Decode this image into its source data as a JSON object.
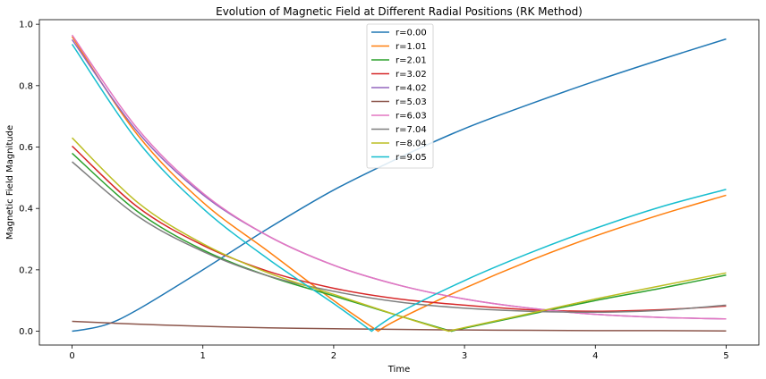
{
  "chart_data": {
    "type": "line",
    "title": "Evolution of Magnetic Field at Different Radial Positions (RK Method)",
    "xlabel": "Time",
    "ylabel": "Magnetic Field Magnitude",
    "xlim": [
      -0.25,
      5.25
    ],
    "ylim": [
      -0.045,
      1.015
    ],
    "xticks": [
      0,
      1,
      2,
      3,
      4,
      5
    ],
    "xtick_labels": [
      "0",
      "1",
      "2",
      "3",
      "4",
      "5"
    ],
    "yticks": [
      0.0,
      0.2,
      0.4,
      0.6,
      0.8,
      1.0
    ],
    "ytick_labels": [
      "0.0",
      "0.2",
      "0.4",
      "0.6",
      "0.8",
      "1.0"
    ],
    "grid": false,
    "legend_position": "top-center",
    "series": [
      {
        "name": "r=0.00",
        "color": "#1f77b4",
        "x": [
          0,
          0.25,
          0.5,
          1.0,
          1.5,
          2.0,
          2.5,
          3.0,
          3.5,
          4.0,
          4.5,
          5.0
        ],
        "y": [
          0.0,
          0.02,
          0.07,
          0.2,
          0.335,
          0.46,
          0.565,
          0.66,
          0.74,
          0.815,
          0.885,
          0.952
        ]
      },
      {
        "name": "r=1.01",
        "color": "#ff7f0e",
        "x": [
          0,
          0.5,
          1.0,
          1.5,
          2.0,
          2.34,
          2.5,
          3.0,
          3.5,
          4.0,
          4.5,
          5.0
        ],
        "y": [
          0.96,
          0.64,
          0.42,
          0.26,
          0.1,
          0.0,
          0.04,
          0.14,
          0.23,
          0.31,
          0.38,
          0.443
        ]
      },
      {
        "name": "r=2.01",
        "color": "#2ca02c",
        "x": [
          0,
          0.5,
          1.0,
          1.5,
          2.0,
          2.5,
          2.9,
          3.0,
          3.5,
          4.0,
          4.5,
          5.0
        ],
        "y": [
          0.58,
          0.39,
          0.265,
          0.18,
          0.115,
          0.05,
          0.0,
          0.01,
          0.055,
          0.1,
          0.14,
          0.183
        ]
      },
      {
        "name": "r=3.02",
        "color": "#d62728",
        "x": [
          0,
          0.5,
          1.0,
          1.5,
          2.0,
          2.5,
          3.0,
          3.5,
          4.0,
          4.5,
          5.0
        ],
        "y": [
          0.603,
          0.405,
          0.28,
          0.195,
          0.14,
          0.105,
          0.085,
          0.07,
          0.065,
          0.07,
          0.082
        ]
      },
      {
        "name": "r=4.02",
        "color": "#9467bd",
        "x": [
          0,
          0.5,
          1.0,
          1.5,
          2.0,
          2.5,
          3.0,
          3.5,
          4.0,
          4.5,
          5.0
        ],
        "y": [
          0.95,
          0.65,
          0.445,
          0.31,
          0.215,
          0.15,
          0.105,
          0.075,
          0.055,
          0.045,
          0.04
        ]
      },
      {
        "name": "r=5.03",
        "color": "#8c564b",
        "x": [
          0,
          0.5,
          1.0,
          1.5,
          2.0,
          2.5,
          3.0,
          3.5,
          4.0,
          4.5,
          5.0
        ],
        "y": [
          0.032,
          0.023,
          0.016,
          0.011,
          0.008,
          0.006,
          0.004,
          0.003,
          0.002,
          0.002,
          0.001
        ]
      },
      {
        "name": "r=6.03",
        "color": "#e377c2",
        "x": [
          0,
          0.5,
          1.0,
          1.5,
          2.0,
          2.5,
          3.0,
          3.5,
          4.0,
          4.5,
          5.0
        ],
        "y": [
          0.965,
          0.66,
          0.45,
          0.31,
          0.215,
          0.15,
          0.105,
          0.075,
          0.055,
          0.045,
          0.04
        ]
      },
      {
        "name": "r=7.04",
        "color": "#7f7f7f",
        "x": [
          0,
          0.5,
          1.0,
          1.5,
          2.0,
          2.5,
          3.0,
          3.5,
          4.0,
          4.5,
          5.0
        ],
        "y": [
          0.552,
          0.375,
          0.26,
          0.18,
          0.13,
          0.095,
          0.075,
          0.065,
          0.062,
          0.068,
          0.085
        ]
      },
      {
        "name": "r=8.04",
        "color": "#bcbd22",
        "x": [
          0,
          0.5,
          1.0,
          1.5,
          2.0,
          2.5,
          2.88,
          3.0,
          3.5,
          4.0,
          4.5,
          5.0
        ],
        "y": [
          0.63,
          0.42,
          0.285,
          0.19,
          0.12,
          0.05,
          0.0,
          0.012,
          0.058,
          0.105,
          0.148,
          0.19
        ]
      },
      {
        "name": "r=9.05",
        "color": "#17becf",
        "x": [
          0,
          0.5,
          1.0,
          1.5,
          2.0,
          2.29,
          2.5,
          3.0,
          3.5,
          4.0,
          4.5,
          5.0
        ],
        "y": [
          0.935,
          0.62,
          0.4,
          0.235,
          0.09,
          0.0,
          0.06,
          0.165,
          0.255,
          0.335,
          0.405,
          0.462
        ]
      }
    ]
  }
}
